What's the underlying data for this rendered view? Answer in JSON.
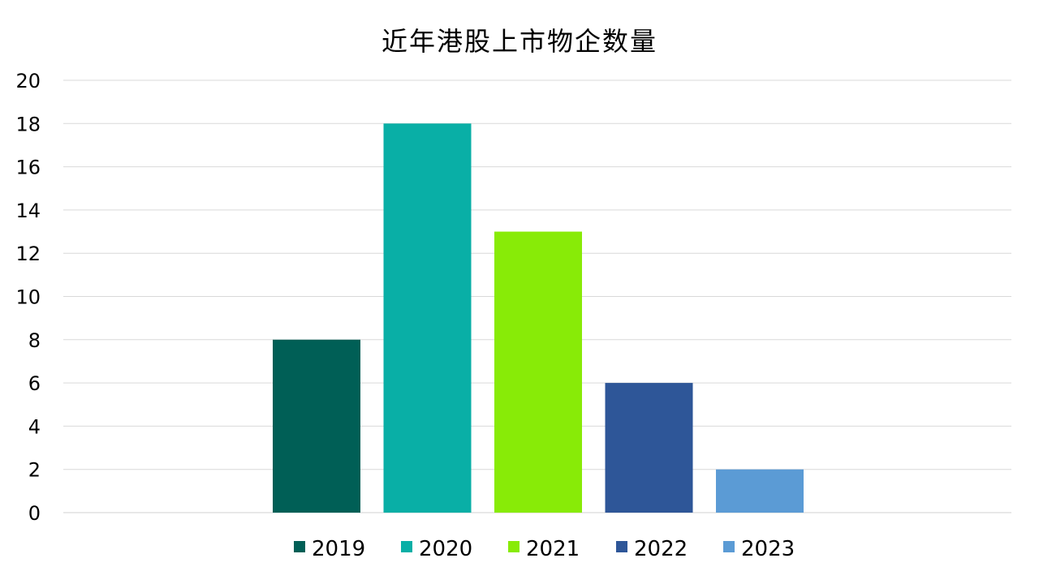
{
  "chart_data": {
    "type": "bar",
    "title": "近年港股上市物企数量",
    "xlabel": "",
    "ylabel": "",
    "ylim": [
      0,
      20
    ],
    "yticks": [
      "0",
      "2",
      "4",
      "6",
      "8",
      "10",
      "12",
      "14",
      "16",
      "18",
      "20"
    ],
    "grid": true,
    "legend_position": "bottom",
    "series": [
      {
        "name": "2019",
        "values": [
          8
        ],
        "color": "#005F56"
      },
      {
        "name": "2020",
        "values": [
          18
        ],
        "color": "#09AFA6"
      },
      {
        "name": "2021",
        "values": [
          13
        ],
        "color": "#88EB07"
      },
      {
        "name": "2022",
        "values": [
          6
        ],
        "color": "#2E5698"
      },
      {
        "name": "2023",
        "values": [
          2
        ],
        "color": "#5B9BD5"
      }
    ]
  }
}
